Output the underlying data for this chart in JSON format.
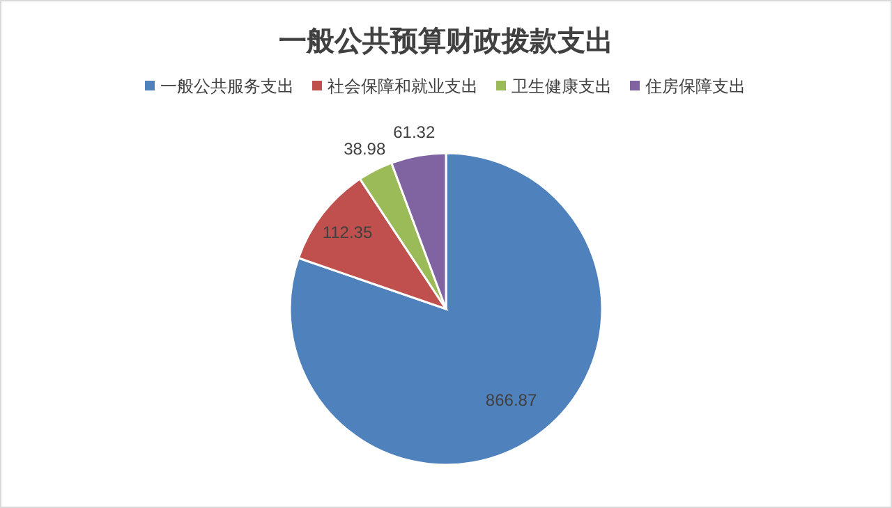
{
  "chart_data": {
    "type": "pie",
    "title": "一般公共预算财政拨款支出",
    "categories": [
      "一般公共服务支出",
      "社会保障和就业支出",
      "卫生健康支出",
      "住房保障支出"
    ],
    "values": [
      866.87,
      112.35,
      38.98,
      61.32
    ],
    "colors": [
      "#4f81bd",
      "#c0504d",
      "#9bbb59",
      "#8064a2"
    ],
    "data_labels": true,
    "legend": "top"
  }
}
